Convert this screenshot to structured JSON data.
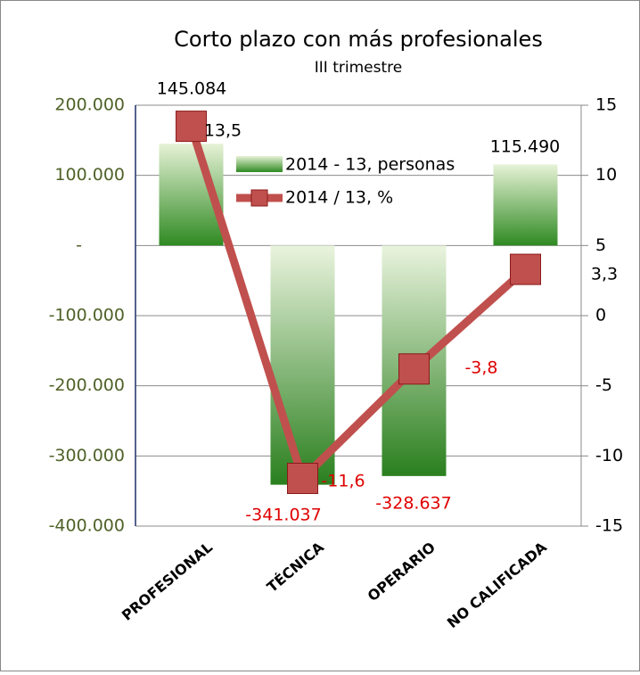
{
  "chart_data": {
    "type": "bar",
    "title": "Corto plazo con más profesionales",
    "subtitle": "III trimestre",
    "categories": [
      "PROFESIONAL",
      "TÉCNICA",
      "OPERARIO",
      "NO CALIFICADA"
    ],
    "series": [
      {
        "name": "2014 - 13, personas",
        "color": "#3a8a2a",
        "values": [
          145084,
          -341037,
          -328637,
          115490
        ],
        "value_labels": [
          "145.084",
          "-341.037",
          "-328.637",
          "115.490"
        ]
      },
      {
        "name": "2014 / 13, %",
        "type": "line",
        "axis": "y2",
        "color": "#c0504d",
        "values": [
          13.5,
          -11.6,
          -3.8,
          3.3
        ],
        "value_labels": [
          "13,5",
          "-11,6",
          "-3,8",
          "3,3"
        ]
      }
    ],
    "ylim": [
      -400000,
      200000
    ],
    "yticks": [
      {
        "value": -400000,
        "label": "-400.000"
      },
      {
        "value": -300000,
        "label": "-300.000"
      },
      {
        "value": -200000,
        "label": "-200.000"
      },
      {
        "value": -100000,
        "label": "-100.000"
      },
      {
        "value": 0,
        "label": "-"
      },
      {
        "value": 100000,
        "label": "100.000"
      },
      {
        "value": 200000,
        "label": "200.000"
      }
    ],
    "y2lim": [
      -15,
      15
    ],
    "y2ticks": [
      -15,
      -10,
      -5,
      0,
      5,
      10,
      15
    ],
    "grid": true,
    "legend": "top-right"
  }
}
